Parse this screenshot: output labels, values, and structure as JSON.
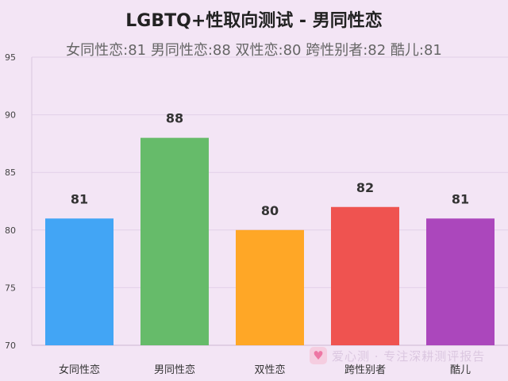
{
  "chart_data": {
    "type": "bar",
    "title": "LGBTQ+性取向测试 - 男同性恋",
    "subtitle": "女同性恋:81 男同性恋:88 双性恋:80 跨性别者:82 酷儿:81",
    "categories": [
      "女同性恋",
      "男同性恋",
      "双性恋",
      "跨性别者",
      "酷儿"
    ],
    "values": [
      81,
      88,
      80,
      82,
      81
    ],
    "colors": [
      "#42a5f5",
      "#66bb6a",
      "#ffa726",
      "#ef5350",
      "#ab47bc"
    ],
    "ylim": [
      70,
      95
    ],
    "yticks": [
      70,
      75,
      80,
      85,
      90,
      95
    ],
    "grid": true,
    "legend": "none"
  },
  "watermark": {
    "icon": "heart-icon",
    "text": "爱心测 · 专注深耕测评报告"
  }
}
